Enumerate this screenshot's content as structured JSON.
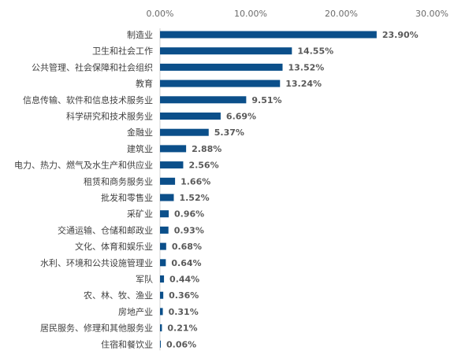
{
  "chart_data": {
    "type": "bar",
    "orientation": "horizontal",
    "title": "",
    "xlabel": "",
    "ylabel": "",
    "xlim": [
      0,
      30
    ],
    "x_ticks": [
      "0.00%",
      "10.00%",
      "20.00%",
      "30.00%"
    ],
    "categories": [
      "制造业",
      "卫生和社会工作",
      "公共管理、社会保障和社会组织",
      "教育",
      "信息传输、软件和信息技术服务业",
      "科学研究和技术服务业",
      "金融业",
      "建筑业",
      "电力、热力、燃气及水生产和供应业",
      "租赁和商务服务业",
      "批发和零售业",
      "采矿业",
      "交通运输、仓储和邮政业",
      "文化、体育和娱乐业",
      "水利、环境和公共设施管理业",
      "军队",
      "农、林、牧、渔业",
      "房地产业",
      "居民服务、修理和其他服务业",
      "住宿和餐饮业"
    ],
    "values": [
      23.9,
      14.55,
      13.52,
      13.24,
      9.51,
      6.69,
      5.37,
      2.88,
      2.56,
      1.66,
      1.52,
      0.96,
      0.93,
      0.68,
      0.64,
      0.44,
      0.36,
      0.31,
      0.21,
      0.06
    ],
    "value_labels": [
      "23.90%",
      "14.55%",
      "13.52%",
      "13.24%",
      "9.51%",
      "6.69%",
      "5.37%",
      "2.88%",
      "2.56%",
      "1.66%",
      "1.52%",
      "0.96%",
      "0.93%",
      "0.68%",
      "0.64%",
      "0.44%",
      "0.36%",
      "0.31%",
      "0.21%",
      "0.06%"
    ],
    "bar_color": "#0b4f8a",
    "grid": false,
    "legend": "none"
  }
}
